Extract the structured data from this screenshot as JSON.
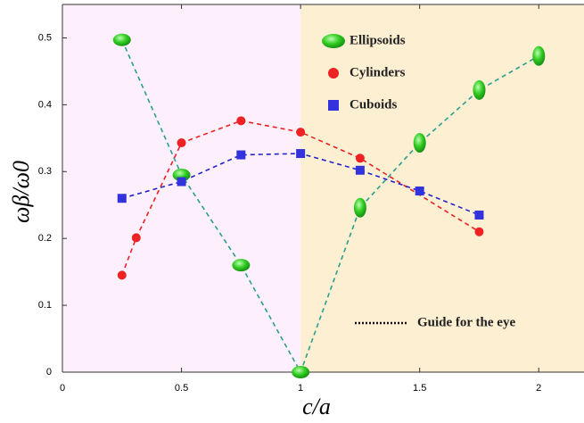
{
  "chart_data": {
    "type": "line",
    "x_label": "c/a",
    "y_label": "ωβ/ω0",
    "xlim": [
      0,
      2.19
    ],
    "ylim": [
      0,
      0.55
    ],
    "xticks": [
      0,
      0.5,
      1,
      1.5,
      2
    ],
    "yticks": [
      0,
      0.1,
      0.2,
      0.3,
      0.4,
      0.5
    ],
    "grid": false,
    "shading": [
      {
        "xrange": [
          0,
          1
        ],
        "color": "#fdf0fc"
      },
      {
        "xrange": [
          1,
          2.19
        ],
        "color": "#fcefd2"
      }
    ],
    "series": [
      {
        "name": "Ellipsoids",
        "color": "#22bb22",
        "marker": "ellipse",
        "line_color": "#2a9d8f",
        "x": [
          0.25,
          0.5,
          0.75,
          1.0,
          1.25,
          1.5,
          1.75,
          2.0
        ],
        "values": [
          0.497,
          0.295,
          0.16,
          0.0,
          0.246,
          0.343,
          0.422,
          0.473
        ]
      },
      {
        "name": "Cylinders",
        "color": "#ee2222",
        "marker": "circle",
        "line_color": "#ee2222",
        "x": [
          0.25,
          0.31,
          0.5,
          0.75,
          1.0,
          1.25,
          1.75
        ],
        "values": [
          0.145,
          0.201,
          0.343,
          0.376,
          0.359,
          0.32,
          0.21
        ]
      },
      {
        "name": "Cuboids",
        "color": "#3333dd",
        "marker": "square",
        "line_color": "#2222cc",
        "x": [
          0.25,
          0.5,
          0.75,
          1.0,
          1.25,
          1.5,
          1.75
        ],
        "values": [
          0.26,
          0.285,
          0.325,
          0.327,
          0.302,
          0.271,
          0.235
        ]
      }
    ],
    "annotation": "Guide for the eye"
  }
}
